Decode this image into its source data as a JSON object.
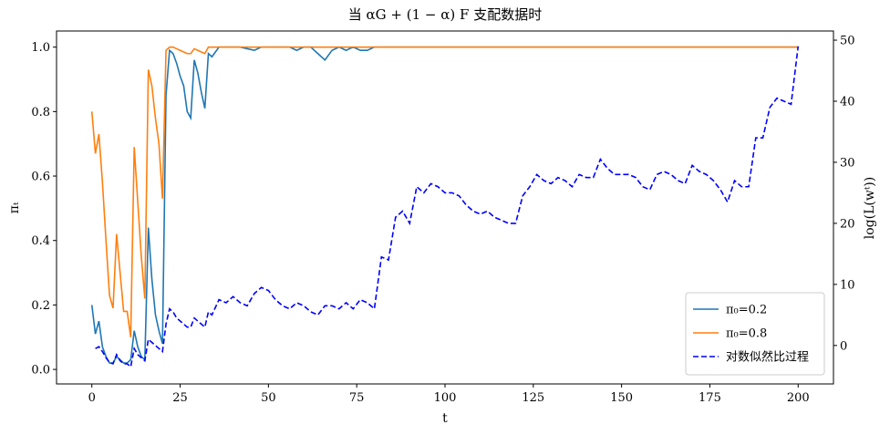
{
  "chart_data": {
    "type": "line",
    "title": "当 αG + (1 − α) F 支配数据时",
    "xlabel": "t",
    "ylabel": "πₜ",
    "y2label": "log(L(wᵗ))",
    "xlim": [
      -10,
      210
    ],
    "ylim": [
      -0.045,
      1.05
    ],
    "y2lim": [
      -6.3,
      51.5
    ],
    "xticks": [
      0,
      25,
      50,
      75,
      100,
      125,
      150,
      175,
      200
    ],
    "yticks": [
      {
        "value": 0,
        "label": "0.0"
      },
      {
        "value": 0.2,
        "label": "0.2"
      },
      {
        "value": 0.4,
        "label": "0.4"
      },
      {
        "value": 0.6,
        "label": "0.6"
      },
      {
        "value": 0.8,
        "label": "0.8"
      },
      {
        "value": 1,
        "label": "1.0"
      }
    ],
    "y2ticks": [
      0,
      10,
      20,
      30,
      40,
      50
    ],
    "legend": "lower right",
    "x": [
      0,
      1,
      2,
      3,
      4,
      5,
      6,
      7,
      8,
      9,
      10,
      11,
      12,
      13,
      14,
      15,
      16,
      17,
      18,
      19,
      20,
      21,
      22,
      23,
      24,
      25,
      26,
      27,
      28,
      29,
      30,
      31,
      32,
      33,
      34,
      36,
      38,
      40,
      42,
      44,
      46,
      48,
      50,
      52,
      54,
      56,
      58,
      60,
      62,
      64,
      66,
      68,
      70,
      72,
      74,
      76,
      78,
      80,
      82,
      84,
      86,
      88,
      90,
      92,
      94,
      96,
      98,
      100,
      102,
      104,
      106,
      108,
      110,
      112,
      114,
      116,
      118,
      120,
      122,
      124,
      126,
      128,
      130,
      132,
      134,
      136,
      138,
      140,
      142,
      144,
      146,
      148,
      150,
      152,
      154,
      156,
      158,
      160,
      162,
      164,
      166,
      168,
      170,
      172,
      174,
      176,
      178,
      180,
      182,
      184,
      186,
      188,
      190,
      192,
      194,
      196,
      198,
      200
    ],
    "series": [
      {
        "name": "π₀=0.2",
        "color": "#1f77b4",
        "linestyle": "solid",
        "axis": "y",
        "values": [
          0.2,
          0.11,
          0.15,
          0.07,
          0.04,
          0.02,
          0.02,
          0.04,
          0.03,
          0.02,
          0.02,
          0.03,
          0.12,
          0.07,
          0.04,
          0.03,
          0.44,
          0.28,
          0.17,
          0.12,
          0.08,
          0.85,
          0.99,
          0.98,
          0.95,
          0.91,
          0.88,
          0.8,
          0.78,
          0.96,
          0.92,
          0.86,
          0.81,
          0.98,
          0.97,
          1.0,
          1.0,
          1.0,
          1.0,
          0.995,
          0.99,
          1.0,
          1.0,
          1.0,
          1.0,
          1.0,
          0.99,
          1.0,
          1.0,
          0.98,
          0.96,
          0.99,
          1.0,
          0.99,
          1.0,
          0.99,
          0.99,
          1.0,
          1.0,
          1.0,
          1.0,
          1.0,
          1.0,
          1.0,
          1.0,
          1.0,
          1.0,
          1.0,
          1.0,
          1.0,
          1.0,
          1.0,
          1.0,
          1.0,
          1.0,
          1.0,
          1.0,
          1.0,
          1.0,
          1.0,
          1.0,
          1.0,
          1.0,
          1.0,
          1.0,
          1.0,
          1.0,
          1.0,
          1.0,
          1.0,
          1.0,
          1.0,
          1.0,
          1.0,
          1.0,
          1.0,
          1.0,
          1.0,
          1.0,
          1.0,
          1.0,
          1.0,
          1.0,
          1.0,
          1.0,
          1.0,
          1.0,
          1.0,
          1.0,
          1.0,
          1.0,
          1.0,
          1.0,
          1.0,
          1.0,
          1.0,
          1.0,
          1.0
        ]
      },
      {
        "name": "π₀=0.8",
        "color": "#ff7f0e",
        "linestyle": "solid",
        "axis": "y",
        "values": [
          0.8,
          0.67,
          0.73,
          0.58,
          0.4,
          0.23,
          0.19,
          0.42,
          0.3,
          0.18,
          0.18,
          0.1,
          0.69,
          0.52,
          0.35,
          0.22,
          0.93,
          0.88,
          0.78,
          0.7,
          0.53,
          0.99,
          1.0,
          1.0,
          0.995,
          0.99,
          0.985,
          0.98,
          0.98,
          0.995,
          0.99,
          0.985,
          0.98,
          1.0,
          1.0,
          1.0,
          1.0,
          1.0,
          1.0,
          1.0,
          1.0,
          1.0,
          1.0,
          1.0,
          1.0,
          1.0,
          1.0,
          1.0,
          1.0,
          1.0,
          1.0,
          1.0,
          1.0,
          1.0,
          1.0,
          1.0,
          1.0,
          1.0,
          1.0,
          1.0,
          1.0,
          1.0,
          1.0,
          1.0,
          1.0,
          1.0,
          1.0,
          1.0,
          1.0,
          1.0,
          1.0,
          1.0,
          1.0,
          1.0,
          1.0,
          1.0,
          1.0,
          1.0,
          1.0,
          1.0,
          1.0,
          1.0,
          1.0,
          1.0,
          1.0,
          1.0,
          1.0,
          1.0,
          1.0,
          1.0,
          1.0,
          1.0,
          1.0,
          1.0,
          1.0,
          1.0,
          1.0,
          1.0,
          1.0,
          1.0,
          1.0,
          1.0,
          1.0,
          1.0,
          1.0,
          1.0,
          1.0,
          1.0,
          1.0,
          1.0,
          1.0,
          1.0,
          1.0,
          1.0,
          1.0,
          1.0,
          1.0,
          1.0
        ]
      },
      {
        "name": "对数似然比过程",
        "color": "#0000ff",
        "linestyle": "dashed",
        "axis": "y2",
        "values": [
          null,
          -0.5,
          -0.2,
          -1,
          -2,
          -2.8,
          -3,
          -1.5,
          -2.5,
          -3,
          -3,
          -3.5,
          -0.5,
          -1.5,
          -2,
          -2.5,
          1,
          0.5,
          0,
          -0.5,
          -1,
          3.5,
          6,
          5.5,
          4.5,
          4,
          3.5,
          3,
          3,
          4.5,
          4,
          3.5,
          3,
          5.5,
          5,
          7.5,
          7,
          8,
          7,
          6.5,
          8.5,
          9.5,
          9,
          7.5,
          6.5,
          6,
          7,
          6.5,
          5.5,
          5,
          6.5,
          6.5,
          6,
          7,
          6,
          7.5,
          7,
          6,
          14.5,
          14,
          21,
          22,
          20,
          26,
          25,
          26.5,
          26,
          25,
          25,
          24.5,
          23,
          22,
          21.5,
          22,
          21,
          20.5,
          20,
          20,
          24.5,
          26,
          28,
          27,
          26.5,
          27.5,
          27,
          26,
          28,
          27.5,
          27.5,
          30.5,
          29,
          28,
          28,
          28,
          27.5,
          26,
          25.5,
          28,
          28.5,
          28,
          27,
          26.5,
          29.5,
          28.5,
          28,
          27,
          25.5,
          23.5,
          27,
          26,
          26,
          34,
          34,
          39,
          40.5,
          40,
          39.5,
          49
        ]
      }
    ]
  }
}
